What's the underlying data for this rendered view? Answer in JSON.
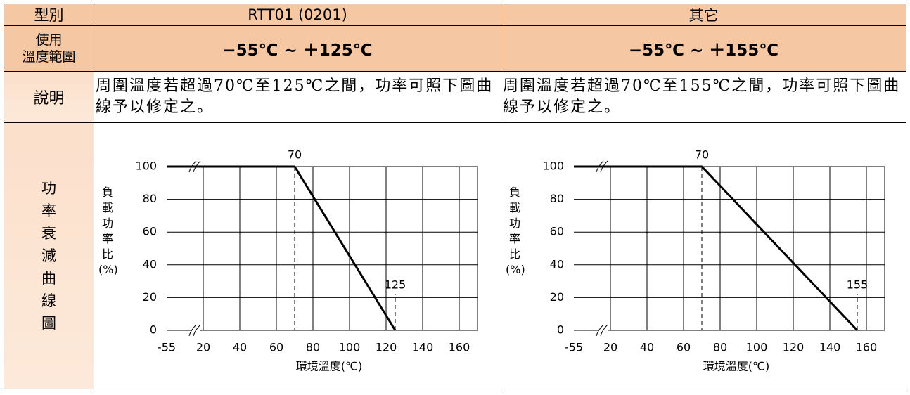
{
  "table": {
    "header": [
      "型別",
      "RTT01 (0201)",
      "其它"
    ],
    "rows": [
      [
        "使用\n溫度範圍",
        "−55℃ ~ ＋125℃",
        "−55℃ ~ ＋155℃"
      ],
      [
        "說明",
        "周圍溫度若超過70℃至125℃之間，功率可照下圖曲線予以修定之。",
        "周圍溫度若超過70℃至155℃之間，功率可照下圖曲線予以修定之。"
      ],
      [
        "功率衰減曲線圖"
      ]
    ]
  },
  "chart_data": [
    {
      "type": "line",
      "x": [
        -55,
        70,
        125
      ],
      "values": [
        100,
        100,
        0
      ],
      "color": "#000000",
      "xlabel": "環境溫度(℃)",
      "ylabel": "負載功率比(%)",
      "xlim": [
        -55,
        170
      ],
      "xticks": [
        -55,
        20,
        40,
        60,
        80,
        100,
        120,
        140,
        160
      ],
      "ylim": [
        0,
        100
      ],
      "yticks": [
        0,
        20,
        40,
        60,
        80,
        100
      ],
      "grid": true,
      "axis_break": true,
      "annotations": [
        {
          "text": "70",
          "x": 70,
          "y": 100
        },
        {
          "text": "125",
          "x": 125,
          "y": 0
        }
      ]
    },
    {
      "type": "line",
      "x": [
        -55,
        70,
        155
      ],
      "values": [
        100,
        100,
        0
      ],
      "color": "#000000",
      "xlabel": "環境溫度(℃)",
      "ylabel": "負載功率比(%)",
      "xlim": [
        -55,
        170
      ],
      "xticks": [
        -55,
        20,
        40,
        60,
        80,
        100,
        120,
        140,
        160
      ],
      "ylim": [
        0,
        100
      ],
      "yticks": [
        0,
        20,
        40,
        60,
        80,
        100
      ],
      "grid": true,
      "axis_break": true,
      "annotations": [
        {
          "text": "70",
          "x": 70,
          "y": 100
        },
        {
          "text": "155",
          "x": 155,
          "y": 0
        }
      ]
    }
  ]
}
